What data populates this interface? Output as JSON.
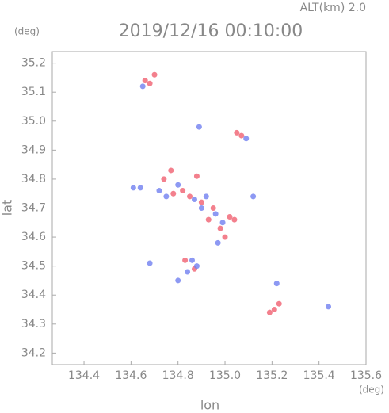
{
  "chart_data": {
    "type": "scatter",
    "title": "2019/12/16 00:10:00",
    "subtitle": "ALT(km) 2.0",
    "x_label": "lon",
    "y_label": "lat",
    "x_unit": "(deg)",
    "y_unit": "(deg)",
    "xlim": [
      134.265,
      135.6
    ],
    "ylim": [
      34.16,
      35.24
    ],
    "xticks": [
      134.4,
      134.6,
      134.8,
      {
        "value": 135.0,
        "label": "135.0"
      },
      135.2,
      135.4,
      135.6
    ],
    "yticks": [
      34.2,
      34.3,
      34.4,
      34.5,
      34.6,
      34.7,
      34.8,
      34.9,
      {
        "value": 35.0,
        "label": "35.0"
      },
      35.1,
      35.2
    ],
    "series": [
      {
        "color": "#f06070",
        "x": [
          134.66,
          134.7,
          134.68,
          135.05,
          135.07,
          134.77,
          134.74,
          134.88,
          134.82,
          134.85,
          134.9,
          134.95,
          135.02,
          135.04,
          134.98,
          135.0,
          134.83,
          134.87,
          135.19,
          135.21,
          135.23,
          134.78,
          134.93
        ],
        "values": [
          35.14,
          35.16,
          35.13,
          34.96,
          34.95,
          34.83,
          34.8,
          34.81,
          34.76,
          34.74,
          34.72,
          34.7,
          34.67,
          34.66,
          34.63,
          34.6,
          34.52,
          34.49,
          34.34,
          34.35,
          34.37,
          34.75,
          34.66
        ]
      },
      {
        "color": "#7080f0",
        "x": [
          134.65,
          134.61,
          134.64,
          134.72,
          134.8,
          134.87,
          134.92,
          134.96,
          134.99,
          134.97,
          134.86,
          134.88,
          134.84,
          134.8,
          135.22,
          135.44,
          134.89,
          135.09,
          135.12,
          134.68,
          134.75,
          134.9
        ],
        "values": [
          35.12,
          34.77,
          34.77,
          34.76,
          34.78,
          34.73,
          34.74,
          34.68,
          34.65,
          34.58,
          34.52,
          34.5,
          34.48,
          34.45,
          34.44,
          34.36,
          34.98,
          34.94,
          34.74,
          34.51,
          34.74,
          34.7
        ]
      }
    ]
  }
}
